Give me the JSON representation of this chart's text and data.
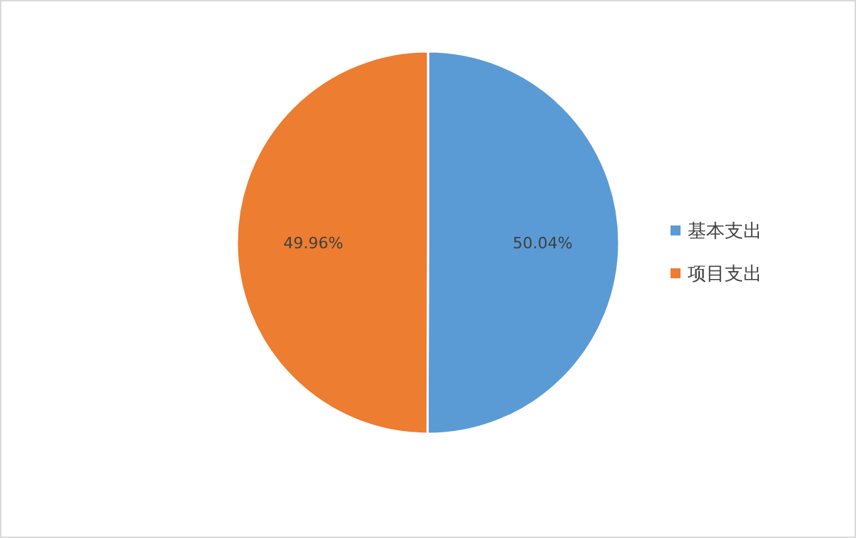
{
  "chart_data": {
    "type": "pie",
    "categories": [
      "基本支出",
      "项目支出"
    ],
    "values": [
      50.04,
      49.96
    ],
    "colors": [
      "#5b9bd5",
      "#ed7d31"
    ],
    "value_labels": [
      "50.04%",
      "49.96%"
    ],
    "legend": "right"
  }
}
